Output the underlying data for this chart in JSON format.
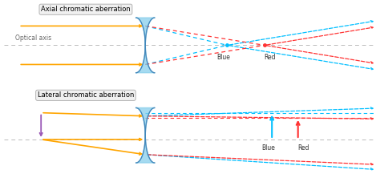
{
  "bg_color": "#ffffff",
  "axis_color": "#bbbbbb",
  "orange_color": "#FFA500",
  "blue_ray_color": "#00BFFF",
  "red_ray_color": "#FF3333",
  "purple_color": "#9B59B6",
  "lens_color": "#87CEEB",
  "lens_edge_color": "#4488bb",
  "label_box_color": "#f0f0f0",
  "label_box_edge": "#aaaaaa",
  "top_title": "Axial chromatic aberration",
  "bottom_title": "Lateral chromatic aberration",
  "optical_axis_label": "Optical axis",
  "blue_label": "Blue",
  "red_label": "Red",
  "text_color": "#333333"
}
